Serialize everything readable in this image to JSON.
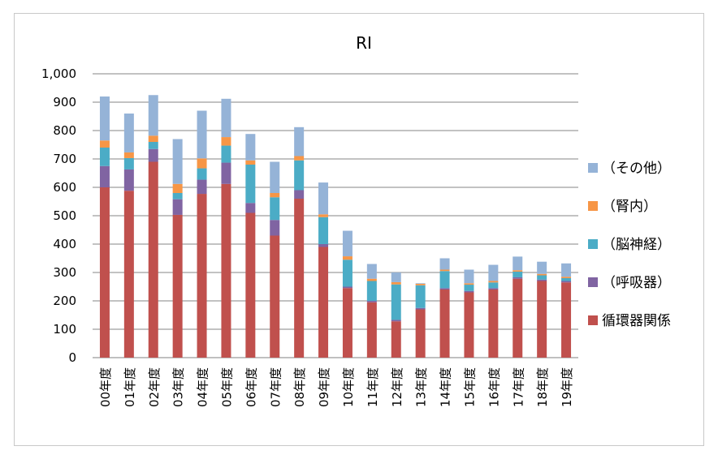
{
  "chart_data": {
    "type": "bar",
    "stacked": true,
    "title": "RI",
    "xlabel": "",
    "ylabel": "",
    "ylim": [
      0,
      1000
    ],
    "yticks": [
      "0",
      "100",
      "200",
      "300",
      "400",
      "500",
      "600",
      "700",
      "800",
      "900",
      "1,000"
    ],
    "grid": true,
    "legend_position": "right",
    "categories": [
      "00年度",
      "01年度",
      "02年度",
      "03年度",
      "04年度",
      "05年度",
      "06年度",
      "07年度",
      "08年度",
      "09年度",
      "10年度",
      "11年度",
      "12年度",
      "13年度",
      "14年度",
      "15年度",
      "16年度",
      "17年度",
      "18年度",
      "19年度"
    ],
    "series": [
      {
        "name": "循環器関係",
        "color": "#c0504d",
        "values": [
          600,
          588,
          690,
          503,
          577,
          612,
          510,
          430,
          560,
          390,
          245,
          195,
          128,
          170,
          240,
          230,
          240,
          278,
          270,
          265
        ]
      },
      {
        "name": "（呼吸器）",
        "color": "#8064a2",
        "values": [
          75,
          75,
          45,
          55,
          50,
          75,
          35,
          55,
          30,
          10,
          5,
          5,
          5,
          5,
          5,
          5,
          5,
          5,
          5,
          5
        ]
      },
      {
        "name": "（脳神経）",
        "color": "#4bacc6",
        "values": [
          65,
          40,
          25,
          22,
          40,
          60,
          135,
          80,
          105,
          95,
          95,
          70,
          125,
          80,
          60,
          22,
          20,
          20,
          15,
          10
        ]
      },
      {
        "name": "（腎内）",
        "color": "#f79646",
        "values": [
          25,
          20,
          22,
          32,
          35,
          30,
          15,
          15,
          15,
          10,
          12,
          8,
          8,
          5,
          5,
          5,
          5,
          5,
          5,
          5
        ]
      },
      {
        "name": "（その他）",
        "color": "#95b3d7",
        "values": [
          155,
          137,
          143,
          158,
          168,
          135,
          93,
          110,
          102,
          112,
          90,
          52,
          34,
          2,
          40,
          48,
          57,
          48,
          43,
          47
        ]
      }
    ]
  }
}
